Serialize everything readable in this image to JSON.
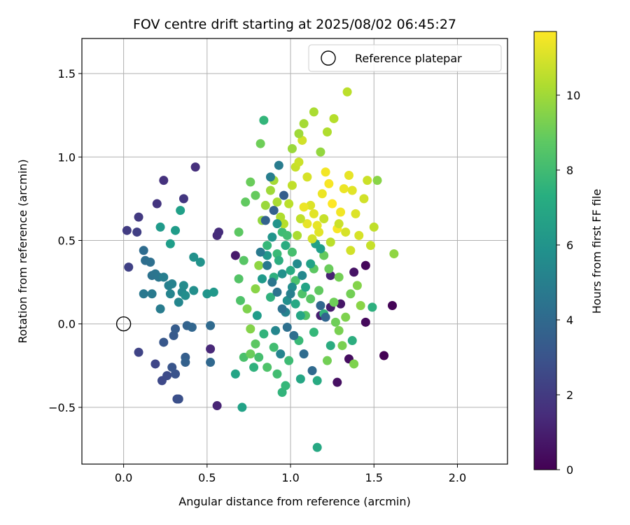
{
  "chart_data": {
    "type": "scatter",
    "title": "FOV centre drift starting at 2025/08/02 06:45:27",
    "xlabel": "Angular distance from reference (arcmin)",
    "ylabel": "Rotation from reference (arcmin)",
    "xlim": [
      -0.25,
      2.3
    ],
    "ylim": [
      -0.84,
      1.71
    ],
    "xticks": [
      0.0,
      0.5,
      1.0,
      1.5,
      2.0
    ],
    "xtick_labels": [
      "0.0",
      "0.5",
      "1.0",
      "1.5",
      "2.0"
    ],
    "yticks": [
      -0.5,
      0.0,
      0.5,
      1.0,
      1.5
    ],
    "ytick_labels": [
      "−0.5",
      "0.0",
      "0.5",
      "1.0",
      "1.5"
    ],
    "grid": true,
    "legend": {
      "placement": "top-right",
      "entries": [
        "Reference platepar"
      ]
    },
    "reference_point": {
      "x": 0.0,
      "y": 0.0,
      "marker": "open-circle",
      "label": "Reference platepar"
    },
    "colorbar": {
      "label": "Hours from first FF file",
      "colormap": "viridis",
      "range": [
        0,
        11.7
      ],
      "ticks": [
        0,
        2,
        4,
        6,
        8,
        10
      ],
      "tick_labels": [
        "0",
        "2",
        "4",
        "6",
        "8",
        "10"
      ]
    },
    "points_columns": [
      "x",
      "y",
      "hours"
    ],
    "points": [
      [
        1.56,
        -0.19,
        0.0
      ],
      [
        1.61,
        0.11,
        0.1
      ],
      [
        1.45,
        0.35,
        0.2
      ],
      [
        1.45,
        0.01,
        0.3
      ],
      [
        1.35,
        -0.21,
        0.4
      ],
      [
        1.28,
        -0.35,
        0.5
      ],
      [
        1.38,
        0.31,
        0.6
      ],
      [
        1.3,
        0.12,
        0.7
      ],
      [
        0.67,
        0.41,
        0.8
      ],
      [
        1.24,
        0.1,
        0.9
      ],
      [
        1.18,
        0.05,
        1.0
      ],
      [
        1.24,
        0.29,
        1.1
      ],
      [
        0.56,
        -0.49,
        1.2
      ],
      [
        0.52,
        -0.15,
        1.3
      ],
      [
        0.56,
        0.53,
        1.4
      ],
      [
        0.57,
        0.55,
        1.5
      ],
      [
        0.43,
        0.94,
        1.6
      ],
      [
        0.24,
        0.86,
        1.7
      ],
      [
        0.2,
        0.72,
        1.8
      ],
      [
        0.36,
        0.75,
        1.9
      ],
      [
        0.09,
        0.64,
        2.0
      ],
      [
        0.02,
        0.56,
        2.1
      ],
      [
        0.08,
        0.55,
        2.2
      ],
      [
        0.03,
        0.34,
        2.3
      ],
      [
        0.09,
        -0.17,
        2.4
      ],
      [
        0.19,
        -0.24,
        2.5
      ],
      [
        0.23,
        -0.34,
        2.6
      ],
      [
        0.26,
        -0.31,
        2.7
      ],
      [
        0.32,
        -0.45,
        2.8
      ],
      [
        0.33,
        -0.45,
        2.9
      ],
      [
        0.31,
        -0.3,
        3.0
      ],
      [
        0.29,
        -0.26,
        3.1
      ],
      [
        0.24,
        -0.11,
        3.2
      ],
      [
        0.3,
        -0.07,
        3.3
      ],
      [
        0.31,
        -0.03,
        3.4
      ],
      [
        0.37,
        -0.2,
        3.5
      ],
      [
        0.37,
        -0.23,
        3.6
      ],
      [
        0.38,
        -0.01,
        3.7
      ],
      [
        0.41,
        -0.02,
        3.8
      ],
      [
        0.52,
        -0.23,
        3.9
      ],
      [
        0.52,
        -0.01,
        4.0
      ],
      [
        0.12,
        0.44,
        4.1
      ],
      [
        0.13,
        0.38,
        4.2
      ],
      [
        0.16,
        0.37,
        4.3
      ],
      [
        0.17,
        0.29,
        4.4
      ],
      [
        0.19,
        0.3,
        4.5
      ],
      [
        0.21,
        0.28,
        4.6
      ],
      [
        0.12,
        0.18,
        4.7
      ],
      [
        0.17,
        0.18,
        4.8
      ],
      [
        0.22,
        0.09,
        4.9
      ],
      [
        0.24,
        0.28,
        5.0
      ],
      [
        0.27,
        0.23,
        5.1
      ],
      [
        0.29,
        0.24,
        5.2
      ],
      [
        0.28,
        0.18,
        5.3
      ],
      [
        0.33,
        0.13,
        5.4
      ],
      [
        0.35,
        0.19,
        5.5
      ],
      [
        0.36,
        0.23,
        5.6
      ],
      [
        0.37,
        0.17,
        5.7
      ],
      [
        0.42,
        0.2,
        5.8
      ],
      [
        0.42,
        0.4,
        5.9
      ],
      [
        0.46,
        0.37,
        6.0
      ],
      [
        0.5,
        0.18,
        6.1
      ],
      [
        0.54,
        0.19,
        6.2
      ],
      [
        0.22,
        0.58,
        6.3
      ],
      [
        0.31,
        0.56,
        6.4
      ],
      [
        0.28,
        0.48,
        6.5
      ],
      [
        0.34,
        0.68,
        6.6
      ],
      [
        0.71,
        -0.5,
        6.7
      ],
      [
        0.67,
        -0.3,
        6.8
      ],
      [
        1.06,
        -0.33,
        6.9
      ],
      [
        1.16,
        -0.74,
        7.0
      ],
      [
        1.16,
        -0.34,
        7.1
      ],
      [
        1.24,
        -0.13,
        7.2
      ],
      [
        1.37,
        -0.1,
        7.3
      ],
      [
        1.49,
        0.1,
        7.4
      ],
      [
        0.78,
        -0.26,
        7.5
      ],
      [
        0.95,
        -0.41,
        7.6
      ],
      [
        0.84,
        1.22,
        7.7
      ],
      [
        0.86,
        0.47,
        7.8
      ],
      [
        0.92,
        0.42,
        7.9
      ],
      [
        0.95,
        0.55,
        8.0
      ],
      [
        0.98,
        0.53,
        8.1
      ],
      [
        1.01,
        0.43,
        8.2
      ],
      [
        1.03,
        0.26,
        8.3
      ],
      [
        1.07,
        0.18,
        8.4
      ],
      [
        1.09,
        0.05,
        8.5
      ],
      [
        1.12,
        0.15,
        8.6
      ],
      [
        1.14,
        0.33,
        8.7
      ],
      [
        1.17,
        0.2,
        8.8
      ],
      [
        1.2,
        0.41,
        8.9
      ],
      [
        1.23,
        0.33,
        9.0
      ],
      [
        1.26,
        0.13,
        9.1
      ],
      [
        1.29,
        0.28,
        9.2
      ],
      [
        1.31,
        -0.13,
        9.3
      ],
      [
        0.74,
        0.09,
        9.4
      ],
      [
        0.76,
        -0.03,
        9.5
      ],
      [
        0.79,
        0.21,
        9.6
      ],
      [
        0.81,
        0.35,
        9.7
      ],
      [
        0.83,
        0.62,
        9.8
      ],
      [
        0.85,
        0.71,
        9.9
      ],
      [
        0.88,
        0.8,
        10.0
      ],
      [
        0.9,
        0.86,
        10.1
      ],
      [
        0.92,
        0.73,
        10.2
      ],
      [
        0.94,
        0.64,
        10.3
      ],
      [
        0.96,
        0.6,
        10.4
      ],
      [
        0.99,
        0.72,
        10.5
      ],
      [
        1.01,
        0.83,
        10.6
      ],
      [
        1.03,
        0.94,
        10.7
      ],
      [
        1.05,
        0.97,
        10.8
      ],
      [
        1.07,
        1.1,
        10.9
      ],
      [
        1.1,
        0.88,
        11.0
      ],
      [
        1.12,
        0.71,
        11.1
      ],
      [
        1.14,
        0.66,
        11.2
      ],
      [
        1.16,
        0.59,
        11.3
      ],
      [
        1.19,
        0.78,
        11.4
      ],
      [
        1.21,
        0.91,
        11.5
      ],
      [
        1.23,
        0.84,
        11.6
      ],
      [
        1.25,
        0.72,
        11.7
      ],
      [
        1.28,
        0.57,
        11.6
      ],
      [
        1.3,
        0.67,
        11.5
      ],
      [
        1.32,
        0.81,
        11.4
      ],
      [
        1.35,
        0.89,
        11.3
      ],
      [
        1.37,
        0.8,
        11.2
      ],
      [
        1.39,
        0.66,
        11.1
      ],
      [
        1.41,
        0.53,
        11.0
      ],
      [
        1.44,
        0.75,
        10.9
      ],
      [
        1.46,
        0.86,
        10.8
      ],
      [
        1.48,
        0.47,
        10.7
      ],
      [
        1.5,
        0.58,
        10.6
      ],
      [
        1.34,
        1.39,
        10.5
      ],
      [
        1.26,
        1.23,
        10.4
      ],
      [
        1.22,
        1.15,
        10.3
      ],
      [
        1.14,
        1.27,
        10.2
      ],
      [
        1.08,
        1.2,
        10.1
      ],
      [
        1.05,
        1.14,
        10.0
      ],
      [
        1.01,
        1.05,
        9.9
      ],
      [
        1.18,
        1.03,
        9.8
      ],
      [
        1.62,
        0.42,
        9.7
      ],
      [
        1.52,
        0.86,
        9.6
      ],
      [
        1.4,
        0.23,
        9.5
      ],
      [
        1.38,
        -0.24,
        9.4
      ],
      [
        1.29,
        -0.04,
        9.3
      ],
      [
        1.22,
        -0.22,
        9.2
      ],
      [
        0.82,
        1.08,
        9.1
      ],
      [
        0.76,
        0.85,
        9.0
      ],
      [
        0.79,
        0.77,
        8.9
      ],
      [
        0.73,
        0.73,
        8.8
      ],
      [
        0.69,
        0.55,
        8.7
      ],
      [
        0.72,
        0.38,
        8.6
      ],
      [
        0.69,
        0.27,
        8.5
      ],
      [
        0.7,
        0.14,
        8.4
      ],
      [
        0.72,
        -0.2,
        8.3
      ],
      [
        0.81,
        -0.2,
        8.2
      ],
      [
        0.9,
        -0.14,
        8.1
      ],
      [
        0.99,
        -0.22,
        8.0
      ],
      [
        1.05,
        -0.1,
        7.9
      ],
      [
        1.14,
        -0.05,
        7.8
      ],
      [
        1.2,
        0.06,
        7.7
      ],
      [
        0.84,
        -0.06,
        7.6
      ],
      [
        0.88,
        0.16,
        7.5
      ],
      [
        0.9,
        0.28,
        7.4
      ],
      [
        0.93,
        0.38,
        7.3
      ],
      [
        0.97,
        0.47,
        7.2
      ],
      [
        1.0,
        0.32,
        7.1
      ],
      [
        1.03,
        0.12,
        7.0
      ],
      [
        1.06,
        0.05,
        6.9
      ],
      [
        1.09,
        0.22,
        6.8
      ],
      [
        1.12,
        0.36,
        6.7
      ],
      [
        1.15,
        0.48,
        6.6
      ],
      [
        1.18,
        0.45,
        6.5
      ],
      [
        0.8,
        0.05,
        6.4
      ],
      [
        0.83,
        0.27,
        6.3
      ],
      [
        0.86,
        0.41,
        6.2
      ],
      [
        0.89,
        0.52,
        6.1
      ],
      [
        0.92,
        0.6,
        6.0
      ],
      [
        0.95,
        0.3,
        5.9
      ],
      [
        0.98,
        0.14,
        5.8
      ],
      [
        1.01,
        0.22,
        5.7
      ],
      [
        1.04,
        0.36,
        5.6
      ],
      [
        1.07,
        0.29,
        5.5
      ],
      [
        0.91,
        -0.04,
        5.4
      ],
      [
        0.94,
        -0.18,
        5.3
      ],
      [
        0.97,
        0.07,
        5.2
      ],
      [
        1.0,
        0.18,
        5.1
      ],
      [
        0.88,
        0.88,
        5.0
      ],
      [
        0.93,
        0.95,
        4.9
      ],
      [
        0.82,
        0.43,
        4.8
      ],
      [
        0.86,
        0.35,
        4.7
      ],
      [
        0.89,
        0.25,
        4.6
      ],
      [
        0.92,
        0.19,
        4.5
      ],
      [
        0.95,
        0.09,
        4.4
      ],
      [
        0.98,
        -0.02,
        4.3
      ],
      [
        1.02,
        -0.07,
        4.2
      ],
      [
        1.08,
        -0.18,
        4.1
      ],
      [
        1.13,
        -0.28,
        4.0
      ],
      [
        1.18,
        0.11,
        3.9
      ],
      [
        1.21,
        0.04,
        3.8
      ],
      [
        0.85,
        0.62,
        3.7
      ],
      [
        0.9,
        0.68,
        3.6
      ],
      [
        0.96,
        0.77,
        3.5
      ],
      [
        0.76,
        -0.18,
        9.0
      ],
      [
        0.79,
        -0.12,
        8.7
      ],
      [
        0.86,
        -0.26,
        8.4
      ],
      [
        0.92,
        -0.3,
        8.1
      ],
      [
        0.97,
        -0.37,
        7.8
      ],
      [
        1.27,
        0.01,
        9.1
      ],
      [
        1.33,
        0.04,
        9.4
      ],
      [
        1.36,
        0.18,
        9.2
      ],
      [
        1.42,
        0.11,
        9.6
      ],
      [
        1.36,
        0.44,
        10.9
      ],
      [
        1.33,
        0.55,
        11.0
      ],
      [
        1.29,
        0.6,
        10.8
      ],
      [
        1.24,
        0.49,
        10.5
      ],
      [
        1.2,
        0.63,
        10.7
      ],
      [
        1.17,
        0.55,
        11.2
      ],
      [
        1.13,
        0.51,
        10.9
      ],
      [
        1.1,
        0.6,
        11.3
      ],
      [
        1.08,
        0.7,
        11.4
      ],
      [
        1.06,
        0.63,
        10.6
      ],
      [
        1.04,
        0.53,
        10.2
      ]
    ]
  }
}
